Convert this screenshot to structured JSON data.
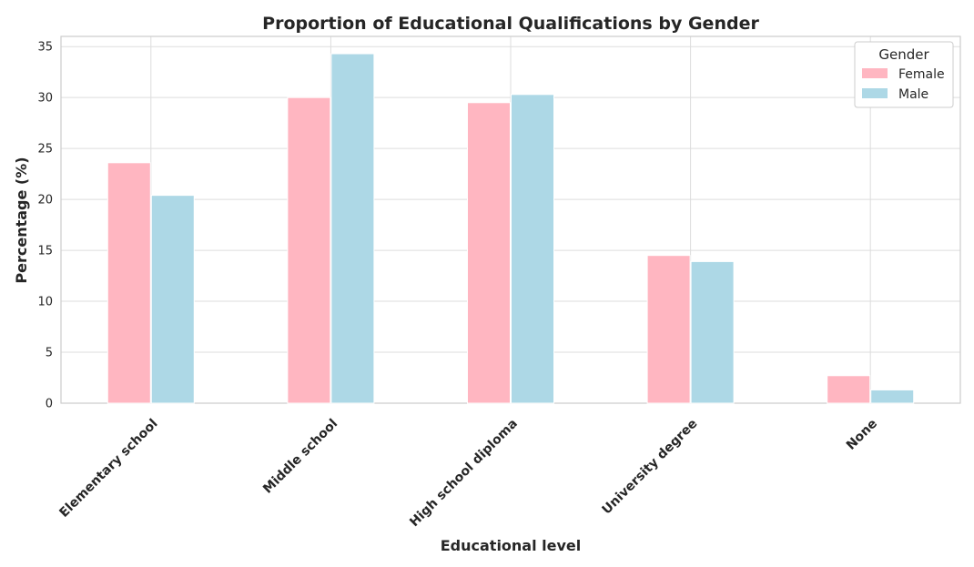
{
  "chart_data": {
    "type": "bar",
    "title": "Proportion of Educational Qualifications by Gender",
    "xlabel": "Educational level",
    "ylabel": "Percentage (%)",
    "categories": [
      "Elementary school",
      "Middle school",
      "High school diploma",
      "University degree",
      "None"
    ],
    "series": [
      {
        "name": "Female",
        "values": [
          23.6,
          30.0,
          29.5,
          14.5,
          2.7
        ],
        "color": "#ffb6c1"
      },
      {
        "name": "Male",
        "values": [
          20.4,
          34.3,
          30.3,
          13.9,
          1.3
        ],
        "color": "#add8e6"
      }
    ],
    "ylim": [
      0,
      36
    ],
    "yticks": [
      0,
      5,
      10,
      15,
      20,
      25,
      30,
      35
    ],
    "grid": true,
    "legend": {
      "title": "Gender",
      "placement": "top-right"
    }
  }
}
